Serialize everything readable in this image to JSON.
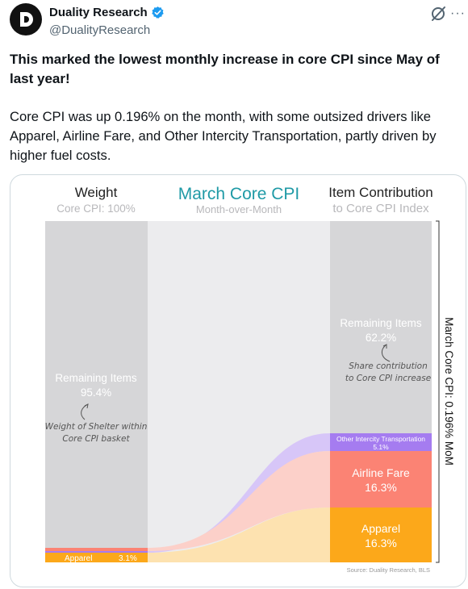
{
  "author": {
    "display_name": "Duality Research",
    "handle": "@DualityResearch"
  },
  "tweet": {
    "headline": "This marked the lowest monthly increase in core CPI since May of last year!",
    "body": "Core CPI was up 0.196% on the month, with some outsized drivers like Apparel, Airline Fare, and Other Intercity Transportation, partly driven by higher fuel costs."
  },
  "icons": {
    "avatar": "duality-logo-icon",
    "verified": "verified-badge-icon",
    "grok": "grok-icon",
    "more": "more-options-icon"
  },
  "chart": {
    "title": "March Core CPI",
    "subtitle": "Month-over-Month",
    "left_header": "Weight",
    "left_subheader": "Core CPI: 100%",
    "right_header": "Item Contribution",
    "right_subheader": "to Core CPI Index",
    "left_remaining_label": "Remaining Items",
    "left_remaining_value": "95.4%",
    "left_annotation_line1": "Weight of Shelter within",
    "left_annotation_line2": "Core CPI basket",
    "left_apparel_label": "Apparel",
    "left_apparel_value": "3.1%",
    "right_remaining_label": "Remaining Items",
    "right_remaining_value": "62.2%",
    "right_annotation_line1": "Share contribution",
    "right_annotation_line2": "to Core CPI increase",
    "other_transport_label": "Other Intercity Transportation",
    "other_transport_value": "5.1%",
    "airline_label": "Airline Fare",
    "airline_value": "16.3%",
    "apparel_label": "Apparel",
    "apparel_value": "16.3%",
    "side_label": "March Core CPI: 0.196% MoM",
    "source": "Source: Duality Research, BLS",
    "colors": {
      "teal": "#1f9aa6",
      "gray": "#d6d6d8",
      "light_gray": "#ececee",
      "purple": "#a57cf0",
      "salmon": "#fb8374",
      "orange": "#fca81a"
    }
  },
  "chart_data": {
    "type": "bar",
    "title": "March Core CPI",
    "categories": [
      "Weight",
      "Item Contribution"
    ],
    "series": [
      {
        "name": "Remaining Items",
        "values": [
          95.4,
          62.2
        ]
      },
      {
        "name": "Other Intercity Transportation",
        "values": [
          null,
          5.1
        ]
      },
      {
        "name": "Airline Fare",
        "values": [
          null,
          16.3
        ]
      },
      {
        "name": "Apparel",
        "values": [
          3.1,
          16.3
        ]
      }
    ],
    "ylim": [
      0,
      100
    ]
  }
}
